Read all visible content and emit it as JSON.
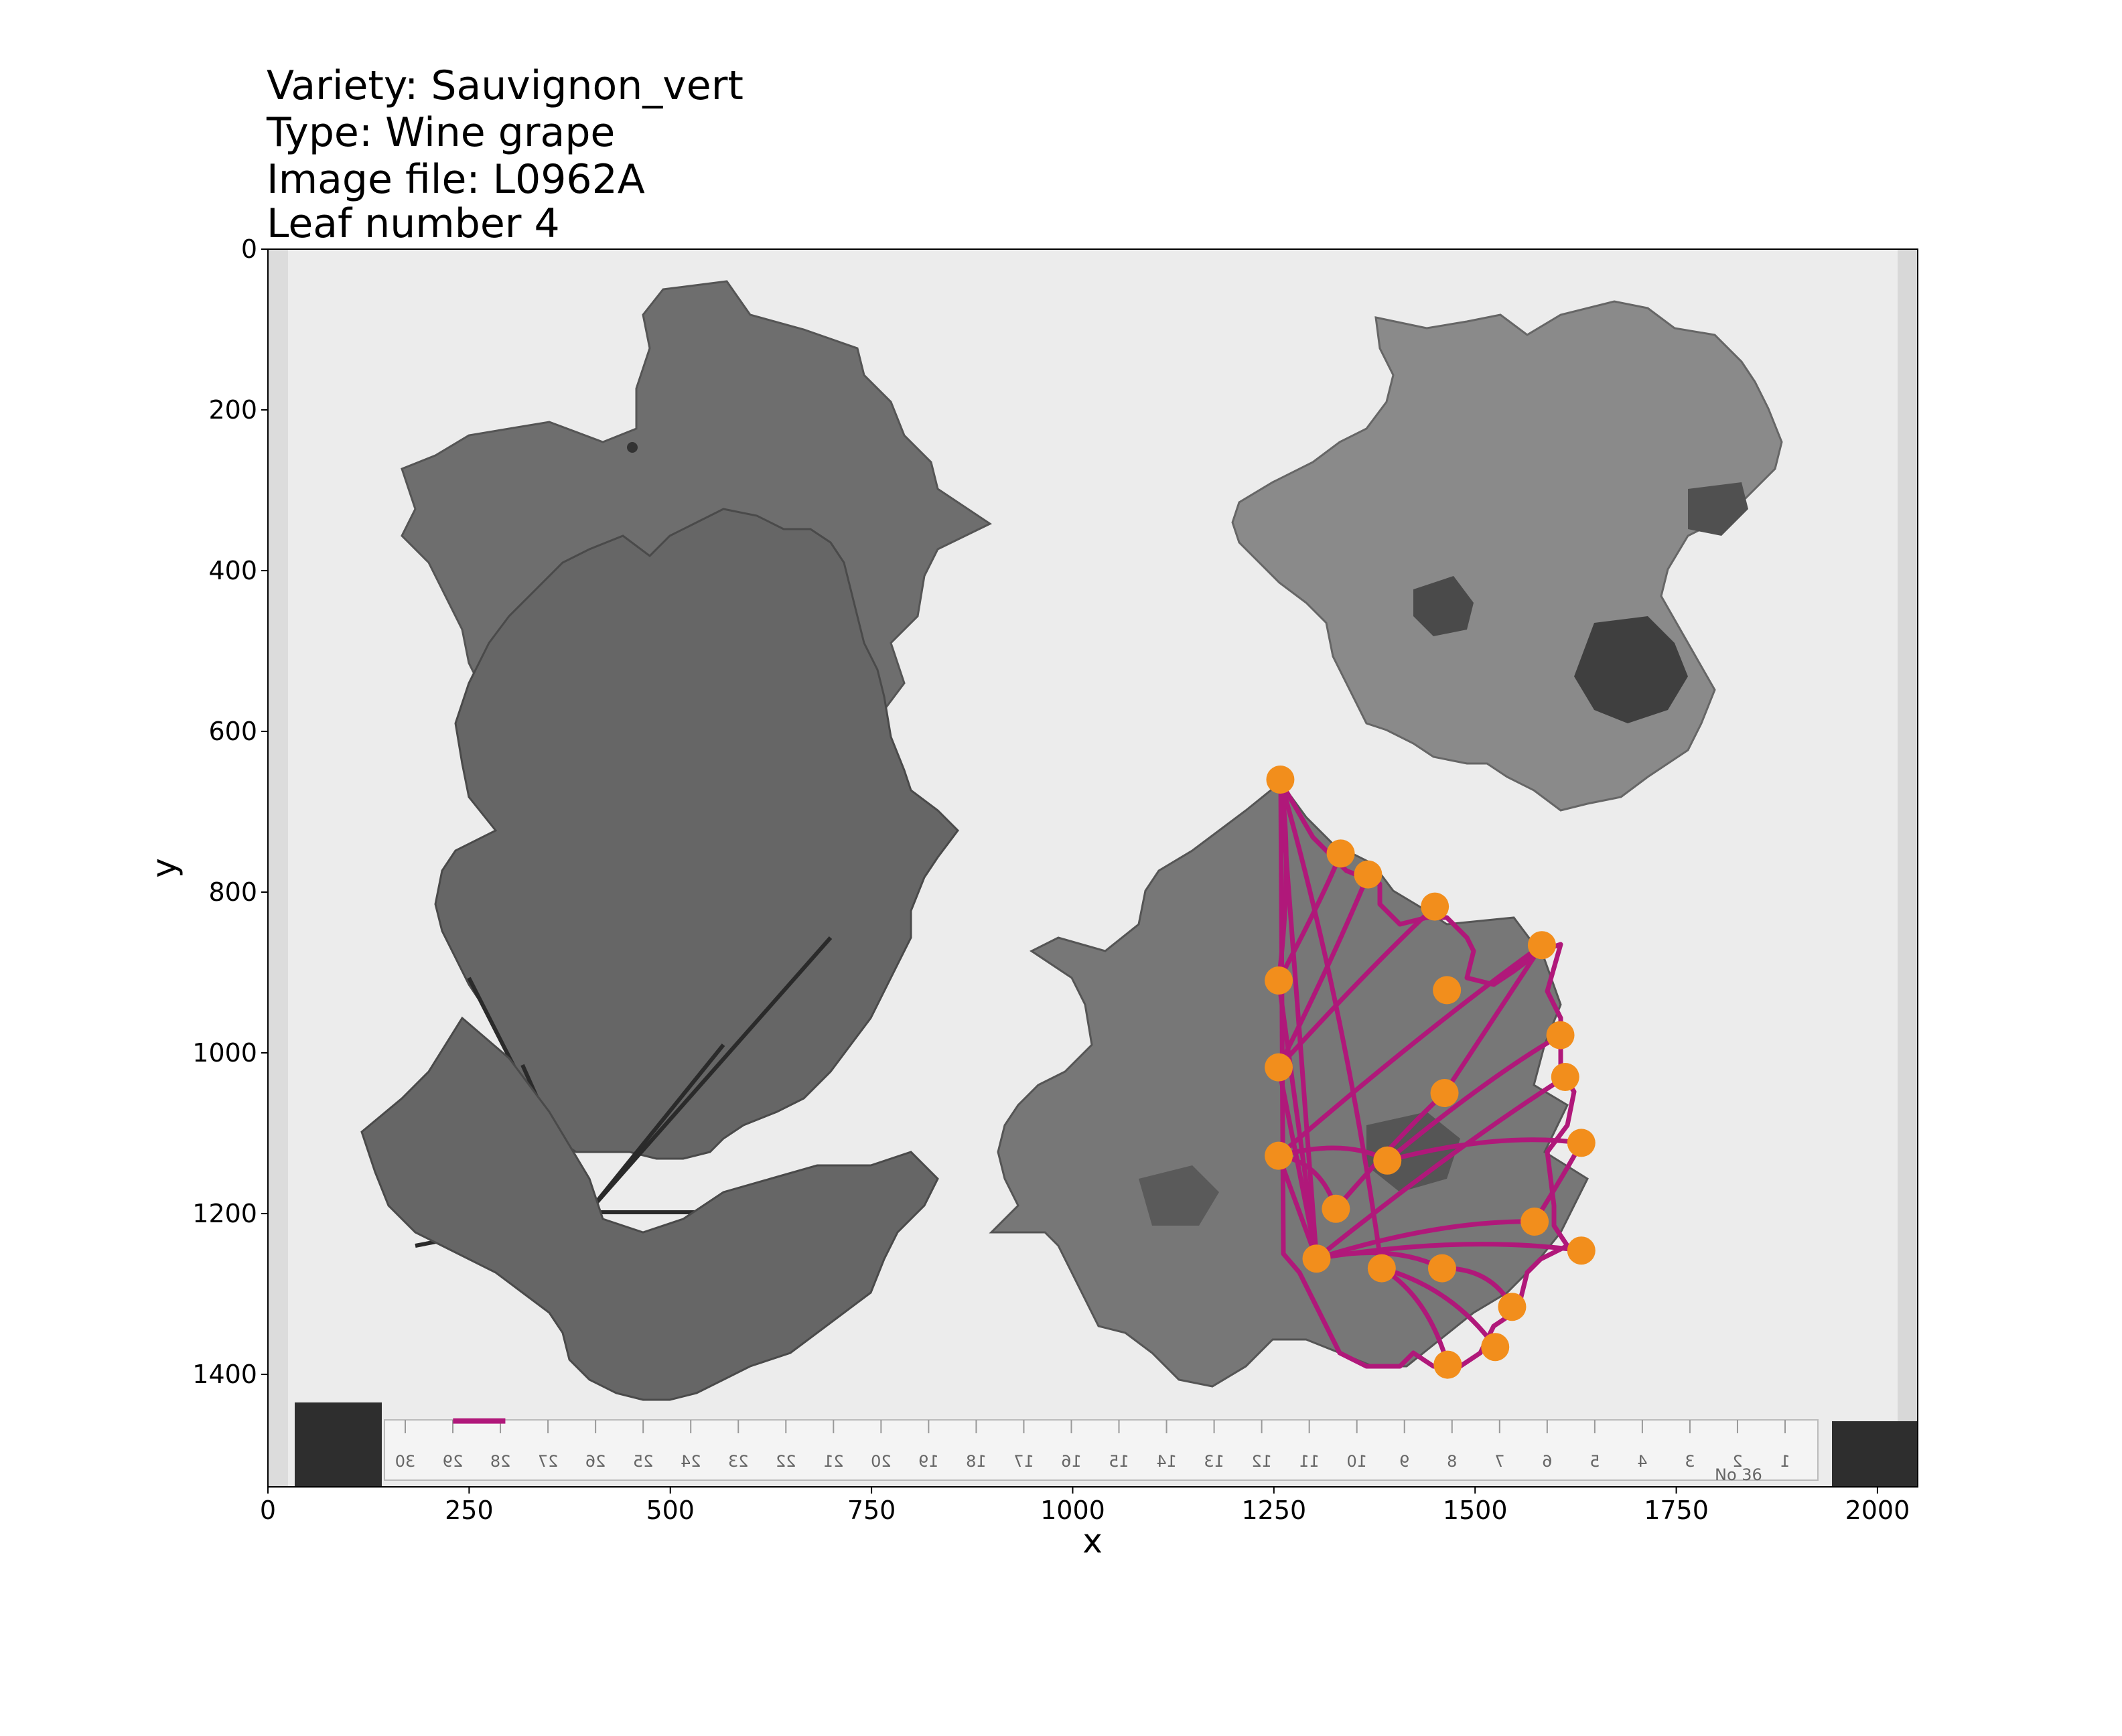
{
  "title_lines": [
    "Variety: Sauvignon_vert",
    "Type: Wine grape",
    "Image file: L0962A",
    "Leaf number 4"
  ],
  "chart_data": {
    "type": "scatter",
    "title": "Variety: Sauvignon_vert\nType: Wine grape\nImage file: L0962A\nLeaf number 4",
    "xlabel": "x",
    "ylabel": "y",
    "xlim": [
      0,
      2050
    ],
    "ylim": [
      1540,
      0
    ],
    "y_inverted": true,
    "grid": false,
    "x_ticks": [
      0,
      250,
      500,
      750,
      1000,
      1250,
      1500,
      1750,
      2000
    ],
    "y_ticks": [
      0,
      200,
      400,
      600,
      800,
      1000,
      1200,
      1400
    ],
    "colors": {
      "landmark": "#f28e1c",
      "outline": "#b0187a",
      "photo_background": "#ececec",
      "leaf_dark": "#6a6a6a",
      "leaf_medium": "#7c7c7c"
    },
    "landmarks": {
      "x": [
        1258,
        1333,
        1367,
        1450,
        1583,
        1465,
        1606,
        1612,
        1632,
        1256,
        1462,
        1256,
        1391,
        1256,
        1327,
        1574,
        1632,
        1303,
        1384,
        1459,
        1546,
        1525,
        1466
      ],
      "y": [
        660,
        752,
        778,
        818,
        866,
        922,
        978,
        1030,
        1112,
        910,
        1050,
        1018,
        1134,
        1128,
        1194,
        1210,
        1246,
        1256,
        1268,
        1268,
        1316,
        1366,
        1388
      ]
    },
    "scale_bar": {
      "x": [
        230,
        295
      ],
      "y": [
        1458,
        1458
      ]
    },
    "ruler_labels": [
      "30",
      "29",
      "28",
      "27",
      "26",
      "25",
      "24",
      "23",
      "22",
      "21",
      "20",
      "19",
      "18",
      "17",
      "16",
      "15",
      "14",
      "13",
      "12",
      "11",
      "10",
      "9",
      "8",
      "7",
      "6",
      "5",
      "4",
      "3",
      "2",
      "1"
    ],
    "ruler_stamp": "No 36"
  }
}
